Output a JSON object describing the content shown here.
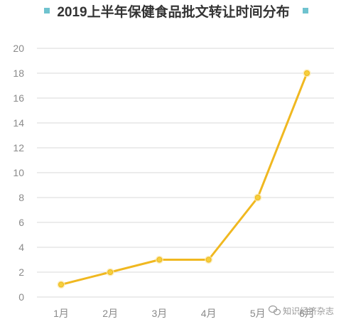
{
  "chart_data": {
    "type": "line",
    "title": "2019上半年保健食品批文转让时间分布",
    "categories": [
      "1月",
      "2月",
      "3月",
      "4月",
      "5月",
      "6月"
    ],
    "series": [
      {
        "values": [
          1,
          2,
          3,
          3,
          8,
          18
        ]
      }
    ],
    "ylim": [
      0,
      20
    ],
    "yticks": [
      0,
      2,
      4,
      6,
      8,
      10,
      12,
      14,
      16,
      18,
      20
    ],
    "grid": true,
    "line_color": "#f0b820",
    "marker_color": "#f5cf3c",
    "title_marker_color": "#6fc3cf"
  },
  "watermark": {
    "text": "知识经济杂志",
    "icon": "wechat-icon"
  }
}
